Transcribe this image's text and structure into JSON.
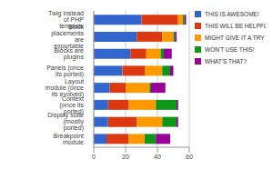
{
  "chart_data": {
    "type": "bar",
    "orientation": "horizontal",
    "stacked": true,
    "grid": true,
    "legend": "upper right",
    "categories": [
      "Twig instead of PHP template",
      "Block placements are exportable",
      "Blocks are plugins",
      "Panels (once its ported)",
      "Layout module (once its evolved)",
      "Context (once its ported)",
      "Display suite (mostly ported)",
      "Breakpoint module"
    ],
    "series": [
      {
        "name": "THIS IS AWESOME!",
        "color": "#3366cc",
        "values": [
          30,
          27,
          23,
          18,
          10,
          9,
          9,
          8
        ]
      },
      {
        "name": "THIS WILL BE HELPFUL",
        "color": "#dc3912",
        "values": [
          23,
          16,
          10,
          14,
          10,
          13,
          18,
          14
        ]
      },
      {
        "name": "MIGHT GIVE IT A TRY",
        "color": "#ff9900",
        "values": [
          3,
          7,
          9,
          11,
          15,
          17,
          16,
          10
        ]
      },
      {
        "name": "WON'T USE THIS!",
        "color": "#109618",
        "values": [
          1,
          1,
          2,
          5,
          1,
          13,
          9,
          7
        ]
      },
      {
        "name": "WHAT'S THAT?",
        "color": "#990099",
        "values": [
          1,
          1,
          5,
          2,
          9,
          1,
          1,
          9
        ]
      }
    ],
    "xlim": [
      0,
      60
    ],
    "xticks": [
      0,
      20,
      40,
      60
    ]
  }
}
